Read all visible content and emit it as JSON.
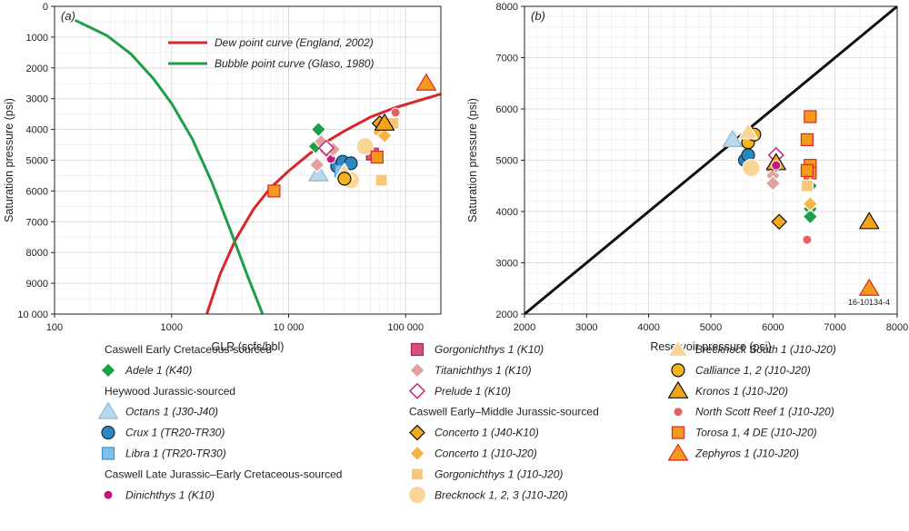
{
  "chart_data": [
    {
      "type": "scatter",
      "panel_label": "(a)",
      "xlabel": "GLR (scfs/bbl)",
      "ylabel": "Saturation pressure (psi)",
      "x_scale": "log",
      "xlim": [
        100,
        200000
      ],
      "ylim": [
        10000,
        0
      ],
      "x_ticks": [
        100,
        1000,
        10000,
        100000
      ],
      "x_tick_labels": [
        "100",
        "1000",
        "10 000",
        "100 000"
      ],
      "y_ticks": [
        0,
        1000,
        2000,
        3000,
        4000,
        5000,
        6000,
        7000,
        8000,
        9000,
        10000
      ],
      "y_tick_labels": [
        "0",
        "1000",
        "2000",
        "3000",
        "4000",
        "5000",
        "6000",
        "7000",
        "8000",
        "9000",
        "10 000"
      ],
      "grid": true,
      "curves": [
        {
          "name": "Dew point curve (England, 2002)",
          "color": "#d9262b",
          "x": [
            2000,
            2600,
            3500,
            5000,
            7000,
            10000,
            15000,
            20000,
            30000,
            50000,
            80000,
            120000,
            200000
          ],
          "y": [
            10000,
            8700,
            7600,
            6600,
            5900,
            5350,
            4800,
            4450,
            4050,
            3600,
            3300,
            3100,
            2850
          ]
        },
        {
          "name": "Bubble point curve (Glaso, 1980)",
          "color": "#1f9e4a",
          "x": [
            150,
            280,
            450,
            700,
            1000,
            1500,
            2200,
            3200,
            4500,
            6000
          ],
          "y": [
            450,
            950,
            1550,
            2350,
            3150,
            4300,
            5700,
            7300,
            8800,
            10000
          ]
        }
      ],
      "points": [
        {
          "series": "Adele 1 (K40)",
          "x": 18000,
          "y": 4000
        },
        {
          "series": "Adele 1 (K40)",
          "x": 17000,
          "y": 4550
        },
        {
          "series": "Octans 1 (J30-J40)",
          "x": 18000,
          "y": 5450
        },
        {
          "series": "Crux 1 (TR20-TR30)",
          "x": 26000,
          "y": 5200
        },
        {
          "series": "Crux 1 (TR20-TR30)",
          "x": 29000,
          "y": 5050
        },
        {
          "series": "Crux 1 (TR20-TR30)",
          "x": 34000,
          "y": 5100
        },
        {
          "series": "Libra 1 (TR20-TR30)",
          "x": 28000,
          "y": 5350
        },
        {
          "series": "Dinichthys 1 (K10)",
          "x": 23000,
          "y": 4950
        },
        {
          "series": "Gorgonichthys 1 (K10)",
          "x": 52000,
          "y": 4800
        },
        {
          "series": "Titanichthys 1 (K10)",
          "x": 17500,
          "y": 5150
        },
        {
          "series": "Titanichthys 1 (K10)",
          "x": 21000,
          "y": 4700
        },
        {
          "series": "Titanichthys 1 (K10)",
          "x": 24000,
          "y": 4650
        },
        {
          "series": "Titanichthys 1 (K10)",
          "x": 19000,
          "y": 4400
        },
        {
          "series": "Prelude 1 (K10)",
          "x": 21000,
          "y": 4600
        },
        {
          "series": "Concerto 1 (J40-K10)",
          "x": 60000,
          "y": 3800
        },
        {
          "series": "Concerto 1 (J10-J20)",
          "x": 60000,
          "y": 4100
        },
        {
          "series": "Concerto 1 (J10-J20)",
          "x": 66000,
          "y": 4200
        },
        {
          "series": "Gorgonichthys 1 (J10-J20)",
          "x": 78000,
          "y": 3800
        },
        {
          "series": "Gorgonichthys 1 (J10-J20)",
          "x": 62000,
          "y": 5650
        },
        {
          "series": "Brecknock 1, 2, 3  (J10-J20)",
          "x": 45000,
          "y": 4550
        },
        {
          "series": "Brecknock 1, 2, 3  (J10-J20)",
          "x": 34000,
          "y": 5650
        },
        {
          "series": "Brecknock South 1 (J10-J20)",
          "x": 30000,
          "y": 5400
        },
        {
          "series": "Calliance 1, 2 (J10-J20)",
          "x": 30000,
          "y": 5600
        },
        {
          "series": "Kronos 1 (J10-J20)",
          "x": 66000,
          "y": 3800
        },
        {
          "series": "North Scott Reef 1 (J10-J20)",
          "x": 82000,
          "y": 3450
        },
        {
          "series": "Torosa 1, 4 DE (J10-J20)",
          "x": 7500,
          "y": 6000
        },
        {
          "series": "Torosa 1, 4 DE (J10-J20)",
          "x": 57000,
          "y": 4900
        },
        {
          "series": "Zephyros 1 (J10-J20)",
          "x": 150000,
          "y": 2500
        }
      ]
    },
    {
      "type": "scatter",
      "panel_label": "(b)",
      "xlabel": "Reservoir pressure (psi)",
      "ylabel": "Saturation pressure (psi)",
      "xlim": [
        2000,
        8000
      ],
      "ylim": [
        2000,
        8000
      ],
      "x_ticks": [
        2000,
        3000,
        4000,
        5000,
        6000,
        7000,
        8000
      ],
      "y_ticks": [
        2000,
        3000,
        4000,
        5000,
        6000,
        7000,
        8000
      ],
      "grid": true,
      "annotation": "16-10134-4",
      "diagonal": {
        "x": [
          2000,
          8000
        ],
        "y": [
          2000,
          8000
        ],
        "color": "#111111"
      },
      "points": [
        {
          "series": "Octans 1 (J30-J40)",
          "x": 5350,
          "y": 5400
        },
        {
          "series": "Crux 1 (TR20-TR30)",
          "x": 5550,
          "y": 5000
        },
        {
          "series": "Crux 1 (TR20-TR30)",
          "x": 5600,
          "y": 5100
        },
        {
          "series": "Calliance 1, 2 (J10-J20)",
          "x": 5600,
          "y": 5350
        },
        {
          "series": "Calliance 1, 2 (J10-J20)",
          "x": 5700,
          "y": 5500
        },
        {
          "series": "Brecknock 1, 2, 3  (J10-J20)",
          "x": 5650,
          "y": 4850
        },
        {
          "series": "Brecknock South 1 (J10-J20)",
          "x": 5600,
          "y": 5550
        },
        {
          "series": "Brecknock South 1 (J10-J20)",
          "x": 6050,
          "y": 4950
        },
        {
          "series": "Prelude 1 (K10)",
          "x": 6050,
          "y": 5100
        },
        {
          "series": "Titanichthys 1 (K10)",
          "x": 6000,
          "y": 4800
        },
        {
          "series": "Titanichthys 1 (K10)",
          "x": 6000,
          "y": 4700
        },
        {
          "series": "Titanichthys 1 (K10)",
          "x": 6000,
          "y": 4550
        },
        {
          "series": "Adele 1 (K40)",
          "x": 6050,
          "y": 4900
        },
        {
          "series": "Kronos 1 (J10-J20)",
          "x": 6050,
          "y": 4950
        },
        {
          "series": "Dinichthys 1 (K10)",
          "x": 6050,
          "y": 4900
        },
        {
          "series": "Concerto 1 (J40-K10)",
          "x": 6100,
          "y": 3800
        },
        {
          "series": "Torosa 1, 4 DE (J10-J20)",
          "x": 6600,
          "y": 5850
        },
        {
          "series": "Torosa 1, 4 DE (J10-J20)",
          "x": 6550,
          "y": 5400
        },
        {
          "series": "Torosa 1, 4 DE (J10-J20)",
          "x": 6600,
          "y": 4900
        },
        {
          "series": "Torosa 1, 4 DE (J10-J20)",
          "x": 6600,
          "y": 4750
        },
        {
          "series": "Torosa 1, 4 DE (J10-J20)",
          "x": 6550,
          "y": 4800
        },
        {
          "series": "Adele 1 (K40)",
          "x": 6600,
          "y": 4500
        },
        {
          "series": "Adele 1 (K40)",
          "x": 6600,
          "y": 4050
        },
        {
          "series": "Adele 1 (K40)",
          "x": 6600,
          "y": 3900
        },
        {
          "series": "Concerto 1 (J10-J20)",
          "x": 6600,
          "y": 4150
        },
        {
          "series": "Gorgonichthys 1 (J10-J20)",
          "x": 6550,
          "y": 4500
        },
        {
          "series": "North Scott Reef 1 (J10-J20)",
          "x": 6550,
          "y": 3450
        },
        {
          "series": "Kronos 1 (J10-J20)",
          "x": 7550,
          "y": 3800
        },
        {
          "series": "Zephyros 1 (J10-J20)",
          "x": 7550,
          "y": 2500
        }
      ]
    }
  ],
  "series_styles": {
    "Adele 1 (K40)": {
      "shape": "diamond",
      "fill": "#1f9e4a",
      "stroke": "#ffffff"
    },
    "Octans 1 (J30-J40)": {
      "shape": "triangle",
      "fill": "#b9d8ee",
      "stroke": "#8fb9dc"
    },
    "Crux 1 (TR20-TR30)": {
      "shape": "circle",
      "fill": "#2b86c2",
      "stroke": "#14324a"
    },
    "Libra 1 (TR20-TR30)": {
      "shape": "square",
      "fill": "#7fc2e8",
      "stroke": "#3e8fc4"
    },
    "Dinichthys 1 (K10)": {
      "shape": "circle-small",
      "fill": "#c2187a",
      "stroke": "#ffffff"
    },
    "Gorgonichthys 1 (K10)": {
      "shape": "square",
      "fill": "#d64f7e",
      "stroke": "#a8264f"
    },
    "Titanichthys 1 (K10)": {
      "shape": "diamond",
      "fill": "#e2a0a0",
      "stroke": "#ffffff"
    },
    "Prelude 1 (K10)": {
      "shape": "diamond-open",
      "fill": "#ffffff",
      "stroke": "#c2187a"
    },
    "Concerto 1 (J40-K10)": {
      "shape": "diamond",
      "fill": "#f3a91f",
      "stroke": "#111111"
    },
    "Concerto 1 (J10-J20)": {
      "shape": "diamond",
      "fill": "#f5b54a",
      "stroke": "#ffffff"
    },
    "Gorgonichthys 1 (J10-J20)": {
      "shape": "square",
      "fill": "#f7c77c",
      "stroke": "#ffffff"
    },
    "Brecknock 1, 2, 3  (J10-J20)": {
      "shape": "circle-large",
      "fill": "#fbd596",
      "stroke": "#ffffff"
    },
    "Brecknock South 1 (J10-J20)": {
      "shape": "triangle",
      "fill": "#fbd596",
      "stroke": "#ffffff"
    },
    "Calliance 1, 2 (J10-J20)": {
      "shape": "circle",
      "fill": "#f4b41e",
      "stroke": "#111111"
    },
    "Kronos 1 (J10-J20)": {
      "shape": "triangle",
      "fill": "#f0a51a",
      "stroke": "#111111"
    },
    "North Scott Reef 1 (J10-J20)": {
      "shape": "circle-small",
      "fill": "#e36363",
      "stroke": "#ffffff"
    },
    "Torosa 1, 4 DE (J10-J20)": {
      "shape": "square",
      "fill": "#f39a1e",
      "stroke": "#d9262b"
    },
    "Zephyros 1 (J10-J20)": {
      "shape": "triangle",
      "fill": "#f39a1e",
      "stroke": "#d9262b"
    }
  },
  "legend": {
    "columns": [
      [
        {
          "type": "header",
          "text": "Caswell Early Cretaceous-sourced"
        },
        {
          "type": "item",
          "series": "Adele 1 (K40)"
        },
        {
          "type": "header",
          "text": "Heywood Jurassic-sourced"
        },
        {
          "type": "item",
          "series": "Octans 1 (J30-J40)"
        },
        {
          "type": "item",
          "series": "Crux 1 (TR20-TR30)"
        },
        {
          "type": "item",
          "series": "Libra 1 (TR20-TR30)"
        },
        {
          "type": "header",
          "text": "Caswell Late Jurassic–Early Cretaceous-sourced"
        },
        {
          "type": "item",
          "series": "Dinichthys 1 (K10)"
        }
      ],
      [
        {
          "type": "item",
          "series": "Gorgonichthys 1 (K10)"
        },
        {
          "type": "item",
          "series": "Titanichthys 1 (K10)"
        },
        {
          "type": "item",
          "series": "Prelude 1 (K10)"
        },
        {
          "type": "header",
          "text": "Caswell Early–Middle Jurassic-sourced"
        },
        {
          "type": "item",
          "series": "Concerto 1 (J40-K10)"
        },
        {
          "type": "item",
          "series": "Concerto 1 (J10-J20)"
        },
        {
          "type": "item",
          "series": "Gorgonichthys 1 (J10-J20)"
        },
        {
          "type": "item",
          "series": "Brecknock 1, 2, 3  (J10-J20)"
        }
      ],
      [
        {
          "type": "item",
          "series": "Brecknock South 1 (J10-J20)"
        },
        {
          "type": "item",
          "series": "Calliance 1, 2 (J10-J20)"
        },
        {
          "type": "item",
          "series": "Kronos 1 (J10-J20)"
        },
        {
          "type": "item",
          "series": "North Scott Reef 1 (J10-J20)"
        },
        {
          "type": "item",
          "series": "Torosa 1, 4 DE (J10-J20)"
        },
        {
          "type": "item",
          "series": "Zephyros 1 (J10-J20)"
        }
      ]
    ]
  }
}
